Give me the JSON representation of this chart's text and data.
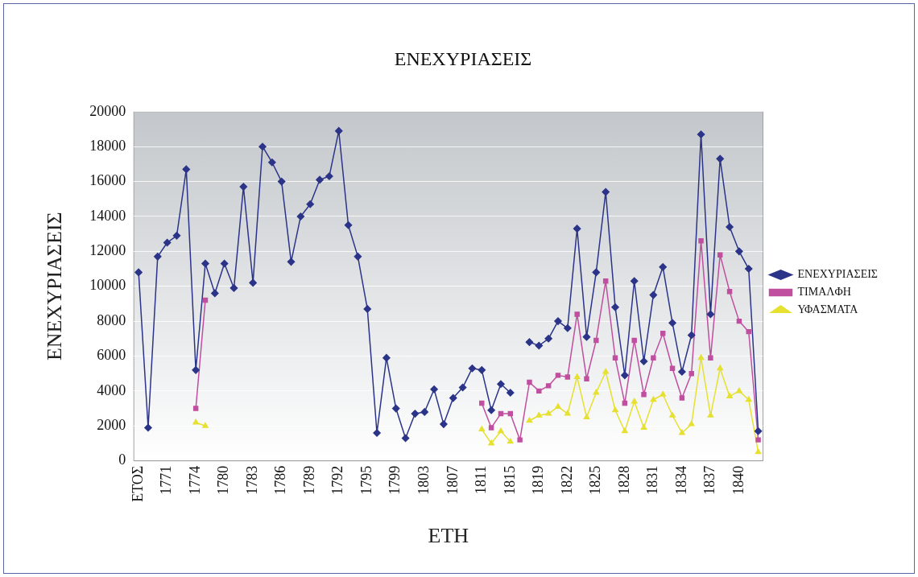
{
  "chart_data": {
    "type": "line",
    "title": "ΕΝΕΧΥΡΙΑΣΕΙΣ",
    "xlabel": "ΕΤΗ",
    "ylabel": "ΕΝΕΧΥΡΙΑΣΕΙΣ",
    "categories": [
      "ΕΤΟΣ",
      null,
      null,
      "1771",
      null,
      null,
      "1774",
      null,
      null,
      "1780",
      null,
      null,
      "1783",
      null,
      null,
      "1786",
      null,
      null,
      "1789",
      null,
      null,
      "1792",
      null,
      null,
      "1795",
      null,
      null,
      "1799",
      null,
      null,
      "1803",
      null,
      null,
      "1807",
      null,
      null,
      "1811",
      null,
      null,
      "1815",
      null,
      null,
      "1819",
      null,
      null,
      "1822",
      null,
      null,
      "1825",
      null,
      null,
      "1828",
      null,
      null,
      "1831",
      null,
      null,
      "1834",
      null,
      null,
      "1837",
      null,
      null,
      "1840",
      null,
      null
    ],
    "series": [
      {
        "name": "ΕΝΕΧΥΡΙΑΣΕΙΣ",
        "color": "#2b3488",
        "marker": "diamond",
        "values": [
          10800,
          1900,
          11700,
          12500,
          12900,
          16700,
          5200,
          11300,
          9600,
          11300,
          9900,
          15700,
          10200,
          18000,
          17100,
          16000,
          11400,
          14000,
          14700,
          16100,
          16300,
          18900,
          13500,
          11700,
          8700,
          1600,
          5900,
          3000,
          1300,
          2700,
          2800,
          4100,
          2100,
          3600,
          4200,
          5300,
          5200,
          2900,
          4400,
          3900,
          null,
          6800,
          6600,
          7000,
          8000,
          7600,
          13300,
          7100,
          10800,
          15400,
          8800,
          4900,
          10300,
          5700,
          9500,
          11100,
          7900,
          5100,
          7200,
          18700,
          8400,
          17300,
          13400,
          12000,
          11000,
          1700
        ]
      },
      {
        "name": "ΤΙΜΑΛΦΗ",
        "color": "#c04fa0",
        "marker": "square",
        "values": [
          null,
          null,
          null,
          null,
          null,
          null,
          3000,
          9200,
          null,
          null,
          null,
          null,
          null,
          null,
          null,
          null,
          null,
          null,
          null,
          null,
          null,
          null,
          null,
          null,
          null,
          null,
          null,
          null,
          null,
          null,
          null,
          null,
          null,
          null,
          null,
          null,
          3300,
          1900,
          2700,
          2700,
          1200,
          4500,
          4000,
          4300,
          4900,
          4800,
          8400,
          4700,
          6900,
          10300,
          5900,
          3300,
          6900,
          3800,
          5900,
          7300,
          5300,
          3600,
          5000,
          12600,
          5900,
          11800,
          9700,
          8000,
          7400,
          1200
        ]
      },
      {
        "name": "ΥΦΑΣΜΑΤΑ",
        "color": "#e6e030",
        "marker": "triangle",
        "values": [
          null,
          null,
          null,
          null,
          null,
          null,
          2200,
          2000,
          null,
          null,
          null,
          null,
          null,
          null,
          null,
          null,
          null,
          null,
          null,
          null,
          null,
          null,
          null,
          null,
          null,
          null,
          null,
          null,
          null,
          null,
          null,
          null,
          null,
          null,
          null,
          null,
          1800,
          1000,
          1700,
          1100,
          null,
          2300,
          2600,
          2700,
          3100,
          2700,
          4800,
          2500,
          3900,
          5100,
          2900,
          1700,
          3400,
          1900,
          3500,
          3800,
          2600,
          1600,
          2100,
          5900,
          2600,
          5300,
          3700,
          4000,
          3500,
          500
        ]
      }
    ],
    "ylim": [
      0,
      20000
    ],
    "yticks": [
      0,
      2000,
      4000,
      6000,
      8000,
      10000,
      12000,
      14000,
      16000,
      18000,
      20000
    ],
    "grid": "y",
    "legend": "right",
    "line_style": "solid"
  }
}
